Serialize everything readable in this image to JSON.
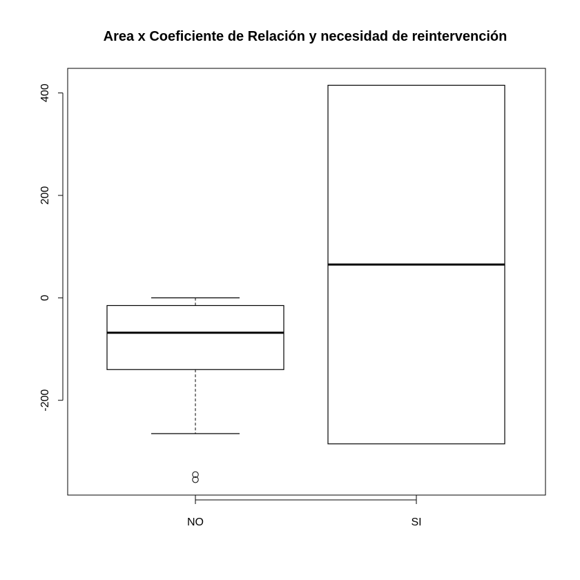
{
  "chart_data": {
    "type": "boxplot",
    "title": "Area x Coeficiente de Relación y necesidad de reintervención",
    "xlabel": "",
    "ylabel": "",
    "categories": [
      "NO",
      "SI"
    ],
    "ylim": [
      -385,
      448
    ],
    "yticks": [
      -200,
      0,
      200,
      400
    ],
    "ytick_labels": [
      "-200",
      "0",
      "200",
      "400"
    ],
    "boxes": [
      {
        "category": "NO",
        "min": -265,
        "q1": -140,
        "median": -68,
        "q3": -15,
        "max": 0,
        "outliers": [
          -345,
          -355
        ]
      },
      {
        "category": "SI",
        "min": -285,
        "q1": -285,
        "median": 65,
        "q3": 415,
        "max": 415,
        "outliers": []
      }
    ],
    "grid": false,
    "legend": "none"
  }
}
